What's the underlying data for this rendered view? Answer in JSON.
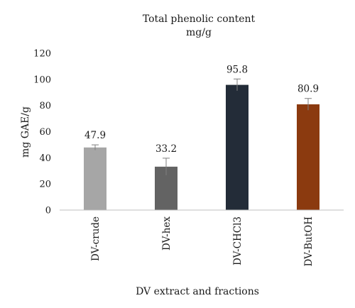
{
  "chart_data": {
    "type": "bar",
    "title_line1": "Total phenolic content",
    "title_line2": "mg/g",
    "ylabel": "mg GAE/g",
    "xlabel": "DV extract and fractions",
    "ylim": [
      0,
      120
    ],
    "yticks": [
      0,
      20,
      40,
      60,
      80,
      100,
      120
    ],
    "grid": false,
    "legend": "none",
    "categories": [
      "DV-crude",
      "DV-hex",
      "DV-CHCl3",
      "DV-ButOH"
    ],
    "values": [
      47.9,
      33.2,
      95.8,
      80.9
    ],
    "value_labels": [
      "47.9",
      "33.2",
      "95.8",
      "80.9"
    ],
    "errors": [
      2.0,
      6.5,
      4.5,
      4.5
    ],
    "colors": [
      "#a6a6a6",
      "#636363",
      "#232c38",
      "#8b3a0f"
    ]
  }
}
